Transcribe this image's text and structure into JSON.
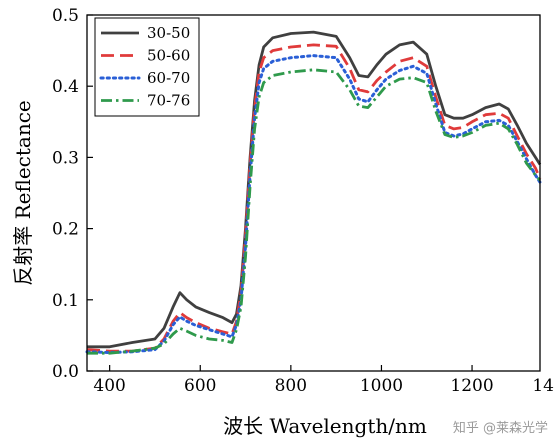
{
  "chart_data": {
    "type": "line",
    "xlabel": "波长 Wavelength/nm",
    "ylabel": "反射率 Reflectance",
    "xlim": [
      350,
      1350
    ],
    "ylim": [
      0.0,
      0.5
    ],
    "xticks": [
      400,
      600,
      800,
      1000,
      1200,
      1400
    ],
    "xtick_labels": [
      "400",
      "600",
      "800",
      "1000",
      "1200",
      "1400"
    ],
    "yticks": [
      0.0,
      0.1,
      0.2,
      0.3,
      0.4,
      0.5
    ],
    "ytick_labels": [
      "0.0",
      "0.1",
      "0.2",
      "0.3",
      "0.4",
      "0.5"
    ],
    "grid": false,
    "legend_position": "top-left",
    "series": [
      {
        "name": "30-50",
        "color": "#404040",
        "dash": "solid",
        "x": [
          350,
          400,
          450,
          500,
          520,
          540,
          555,
          570,
          590,
          620,
          650,
          670,
          680,
          690,
          700,
          710,
          720,
          730,
          740,
          760,
          800,
          850,
          900,
          930,
          950,
          970,
          990,
          1010,
          1040,
          1070,
          1100,
          1120,
          1140,
          1160,
          1180,
          1200,
          1230,
          1260,
          1280,
          1300,
          1320,
          1340,
          1350
        ],
        "y": [
          0.034,
          0.034,
          0.04,
          0.045,
          0.06,
          0.09,
          0.11,
          0.1,
          0.09,
          0.082,
          0.075,
          0.068,
          0.08,
          0.12,
          0.2,
          0.3,
          0.38,
          0.43,
          0.455,
          0.468,
          0.474,
          0.476,
          0.47,
          0.44,
          0.415,
          0.413,
          0.43,
          0.445,
          0.458,
          0.462,
          0.445,
          0.4,
          0.36,
          0.355,
          0.355,
          0.36,
          0.37,
          0.375,
          0.368,
          0.345,
          0.32,
          0.3,
          0.29
        ]
      },
      {
        "name": "50-60",
        "color": "#e03b3b",
        "dash": "long-dash",
        "x": [
          350,
          400,
          450,
          500,
          520,
          540,
          555,
          570,
          590,
          620,
          650,
          670,
          680,
          690,
          700,
          710,
          720,
          730,
          740,
          760,
          800,
          850,
          900,
          930,
          950,
          970,
          990,
          1010,
          1040,
          1070,
          1100,
          1120,
          1140,
          1160,
          1180,
          1200,
          1230,
          1260,
          1280,
          1300,
          1320,
          1340,
          1350
        ],
        "y": [
          0.03,
          0.028,
          0.028,
          0.032,
          0.045,
          0.07,
          0.082,
          0.075,
          0.068,
          0.06,
          0.055,
          0.052,
          0.07,
          0.11,
          0.19,
          0.29,
          0.37,
          0.42,
          0.44,
          0.45,
          0.455,
          0.458,
          0.456,
          0.425,
          0.395,
          0.392,
          0.408,
          0.42,
          0.435,
          0.44,
          0.428,
          0.385,
          0.345,
          0.34,
          0.342,
          0.35,
          0.36,
          0.362,
          0.355,
          0.33,
          0.305,
          0.285,
          0.27
        ]
      },
      {
        "name": "60-70",
        "color": "#2a5fd6",
        "dash": "dot",
        "x": [
          350,
          400,
          450,
          500,
          520,
          540,
          555,
          570,
          590,
          620,
          650,
          670,
          680,
          690,
          700,
          710,
          720,
          730,
          740,
          760,
          800,
          850,
          900,
          930,
          950,
          970,
          990,
          1010,
          1040,
          1070,
          1100,
          1120,
          1140,
          1160,
          1180,
          1200,
          1230,
          1260,
          1280,
          1300,
          1320,
          1340,
          1350
        ],
        "y": [
          0.027,
          0.026,
          0.027,
          0.03,
          0.042,
          0.065,
          0.076,
          0.07,
          0.064,
          0.058,
          0.052,
          0.048,
          0.065,
          0.1,
          0.175,
          0.275,
          0.355,
          0.405,
          0.425,
          0.435,
          0.44,
          0.443,
          0.44,
          0.41,
          0.382,
          0.378,
          0.395,
          0.41,
          0.422,
          0.428,
          0.418,
          0.375,
          0.335,
          0.33,
          0.333,
          0.34,
          0.35,
          0.352,
          0.345,
          0.322,
          0.298,
          0.275,
          0.265
        ]
      },
      {
        "name": "70-76",
        "color": "#2f9a4c",
        "dash": "dash-dot",
        "x": [
          350,
          400,
          450,
          500,
          520,
          540,
          555,
          570,
          590,
          620,
          650,
          670,
          680,
          690,
          700,
          710,
          720,
          730,
          740,
          760,
          800,
          850,
          900,
          930,
          950,
          970,
          990,
          1010,
          1040,
          1070,
          1100,
          1120,
          1140,
          1160,
          1180,
          1200,
          1230,
          1260,
          1280,
          1300,
          1320,
          1340,
          1350
        ],
        "y": [
          0.025,
          0.025,
          0.028,
          0.032,
          0.038,
          0.052,
          0.06,
          0.056,
          0.05,
          0.045,
          0.043,
          0.04,
          0.058,
          0.09,
          0.16,
          0.26,
          0.34,
          0.385,
          0.405,
          0.415,
          0.42,
          0.423,
          0.42,
          0.395,
          0.372,
          0.37,
          0.385,
          0.4,
          0.41,
          0.412,
          0.405,
          0.365,
          0.332,
          0.328,
          0.33,
          0.335,
          0.345,
          0.348,
          0.34,
          0.318,
          0.292,
          0.275,
          0.268
        ]
      }
    ]
  },
  "watermark": "知乎 @莱森光学"
}
